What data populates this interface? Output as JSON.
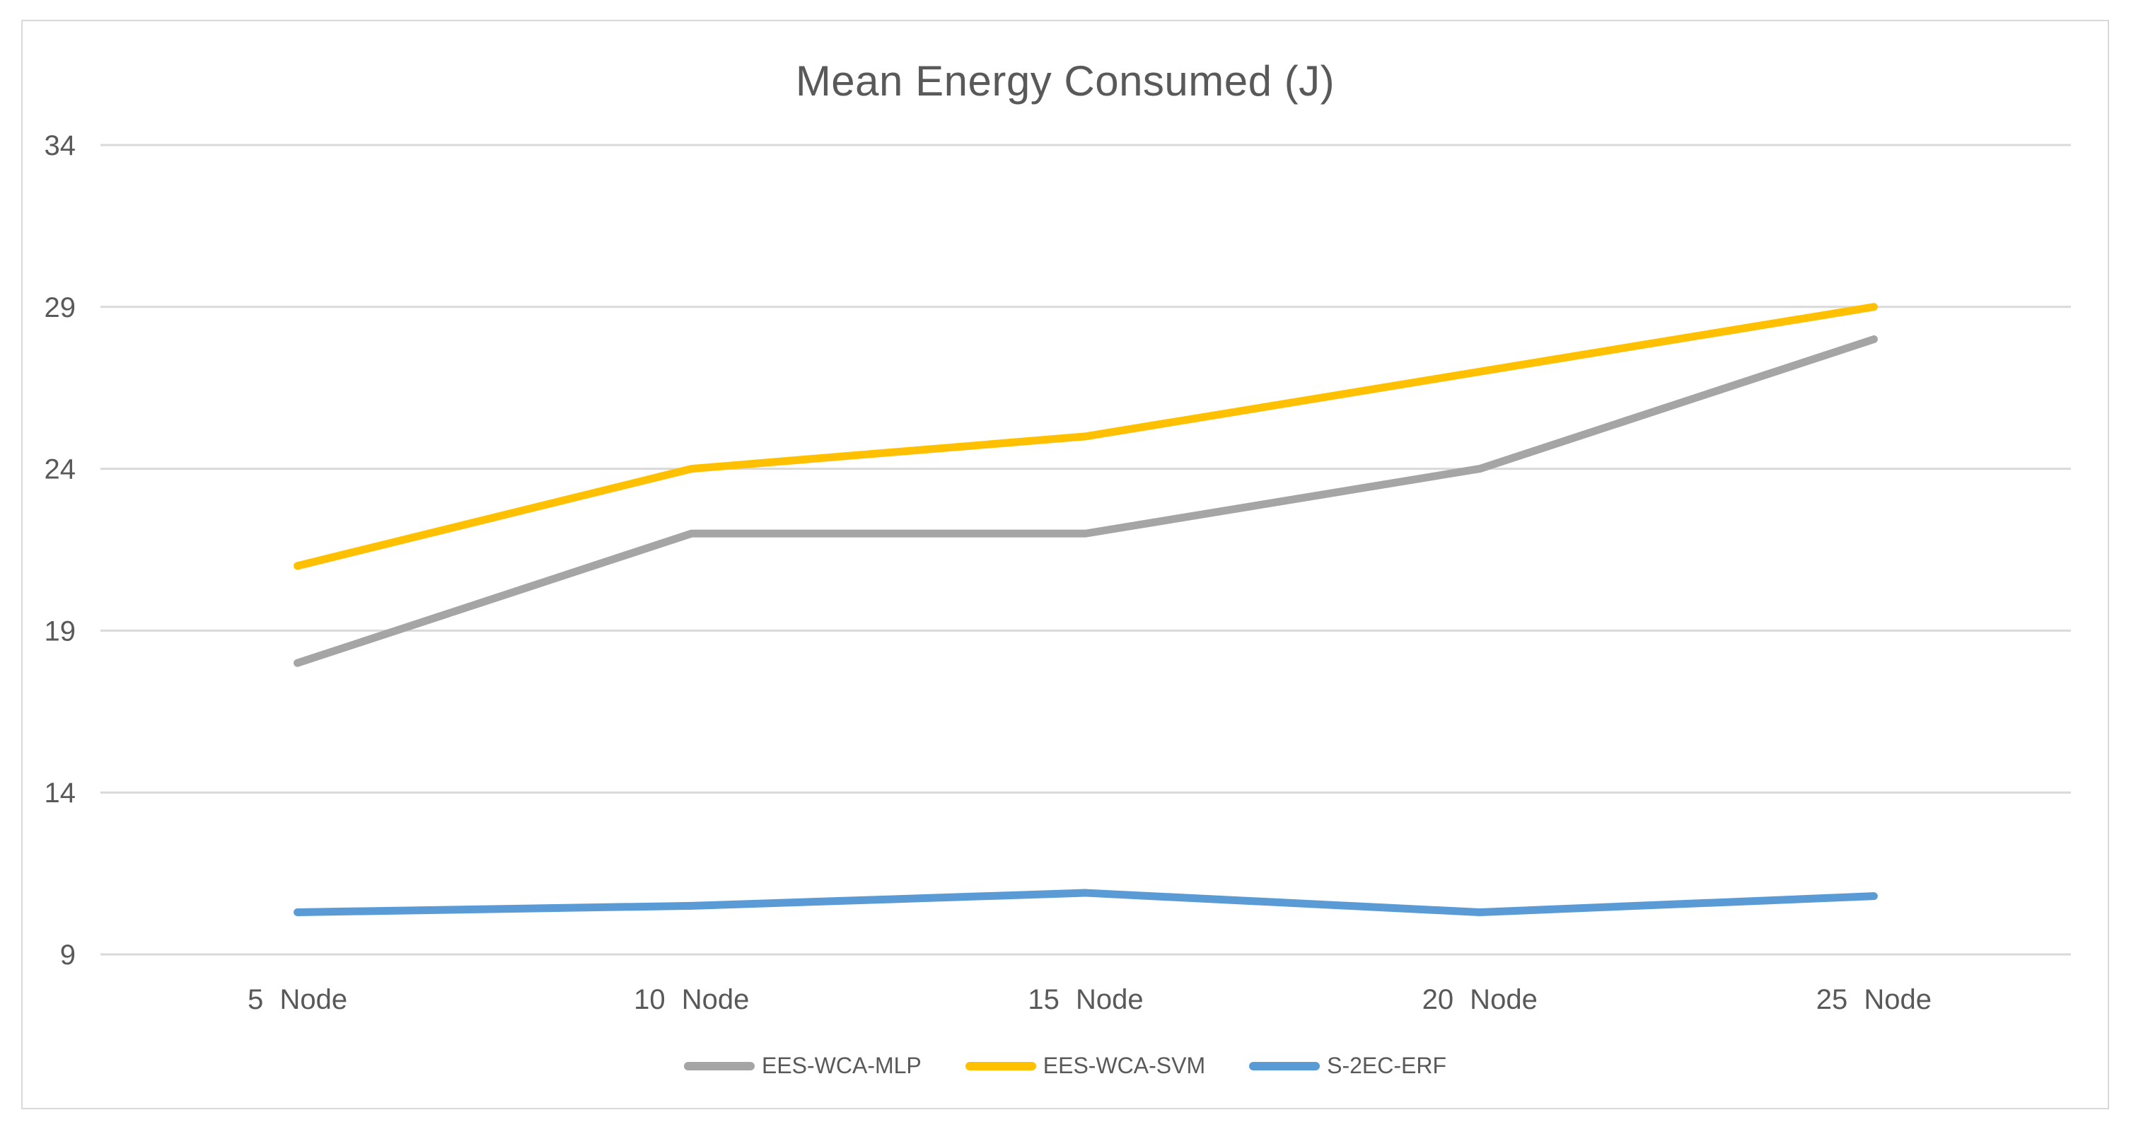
{
  "chart_data": {
    "type": "line",
    "title": "Mean Energy Consumed (J)",
    "categories": [
      "5 Node",
      "10 Node",
      "15 Node",
      "20 Node",
      "25 Node"
    ],
    "series": [
      {
        "name": "EES-WCA-MLP",
        "color": "#A5A5A5",
        "values": [
          18,
          22,
          22,
          24,
          28
        ]
      },
      {
        "name": "EES-WCA-SVM",
        "color": "#FFC000",
        "values": [
          21,
          24,
          25,
          27,
          29
        ]
      },
      {
        "name": "S-2EC-ERF",
        "color": "#5B9BD5",
        "values": [
          10.3,
          10.5,
          10.9,
          10.3,
          10.8
        ]
      }
    ],
    "y_ticks": [
      34,
      29,
      24,
      19,
      14,
      9
    ],
    "ylim": [
      9,
      34
    ],
    "xlabel": "",
    "ylabel": "",
    "grid": true,
    "legend_position": "bottom"
  },
  "style": {
    "background": "#FFFFFF",
    "text_color": "#595959",
    "gridline_color": "#D9D9D9",
    "frame_border_color": "#D9D9D9"
  }
}
